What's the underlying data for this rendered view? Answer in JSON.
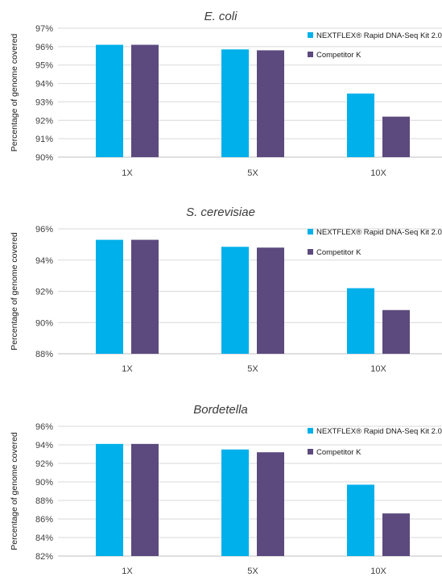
{
  "colors": {
    "series_a": "#00B0EA",
    "series_b": "#5C4A7E",
    "grid": "#d9d9d9",
    "axis": "#bfbfbf"
  },
  "chart_data": [
    {
      "type": "bar",
      "title": "E. coli",
      "ylabel": "Percentage of genome covered",
      "categories": [
        "1X",
        "5X",
        "10X"
      ],
      "yticks": [
        "90%",
        "91%",
        "92%",
        "93%",
        "94%",
        "95%",
        "96%",
        "97%"
      ],
      "ylim": [
        90,
        97
      ],
      "ystep": 1,
      "grid": true,
      "legend_position": "top-right",
      "series": [
        {
          "name": "NEXTFLEX® Rapid DNA-Seq Kit 2.0",
          "values": [
            96.1,
            95.85,
            93.45
          ]
        },
        {
          "name": "Competitor K",
          "values": [
            96.1,
            95.8,
            92.2
          ]
        }
      ]
    },
    {
      "type": "bar",
      "title": "S. cerevisiae",
      "ylabel": "Percentage of genome covered",
      "categories": [
        "1X",
        "5X",
        "10X"
      ],
      "yticks": [
        "88%",
        "90%",
        "92%",
        "94%",
        "96%"
      ],
      "ylim": [
        88,
        96
      ],
      "ystep": 2,
      "grid": true,
      "legend_position": "top-right",
      "series": [
        {
          "name": "NEXTFLEX® Rapid DNA-Seq Kit 2.0",
          "values": [
            95.3,
            94.85,
            92.2
          ]
        },
        {
          "name": "Competitor K",
          "values": [
            95.3,
            94.8,
            90.8
          ]
        }
      ]
    },
    {
      "type": "bar",
      "title": "Bordetella",
      "ylabel": "Percentage of genome covered",
      "categories": [
        "1X",
        "5X",
        "10X"
      ],
      "yticks": [
        "82%",
        "84%",
        "86%",
        "88%",
        "90%",
        "92%",
        "94%",
        "96%"
      ],
      "ylim": [
        82,
        96
      ],
      "ystep": 2,
      "grid": true,
      "legend_position": "top-right",
      "series": [
        {
          "name": "NEXTFLEX® Rapid DNA-Seq Kit 2.0",
          "values": [
            94.1,
            93.5,
            89.7
          ]
        },
        {
          "name": "Competitor K",
          "values": [
            94.1,
            93.2,
            86.6
          ]
        }
      ]
    }
  ]
}
